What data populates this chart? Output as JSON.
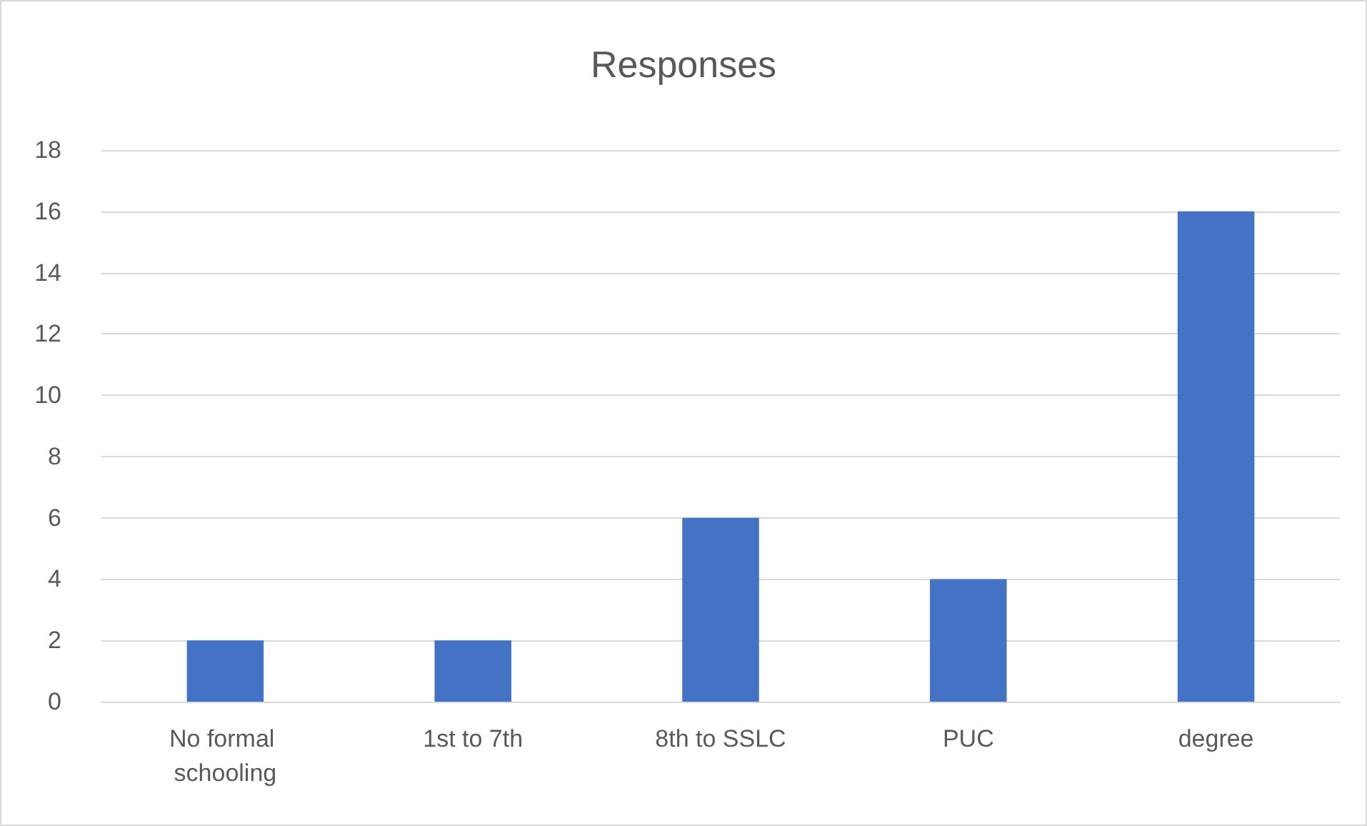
{
  "chart_data": {
    "type": "bar",
    "title": "Responses",
    "categories": [
      "No formal schooling",
      "1st to 7th",
      "8th to SSLC",
      "PUC",
      "degree"
    ],
    "values": [
      2,
      2,
      6,
      4,
      16
    ],
    "color": "#4472c4",
    "ylim": [
      0,
      18
    ],
    "yticks": [
      0,
      2,
      4,
      6,
      8,
      10,
      12,
      14,
      16,
      18
    ],
    "grid": "y"
  }
}
